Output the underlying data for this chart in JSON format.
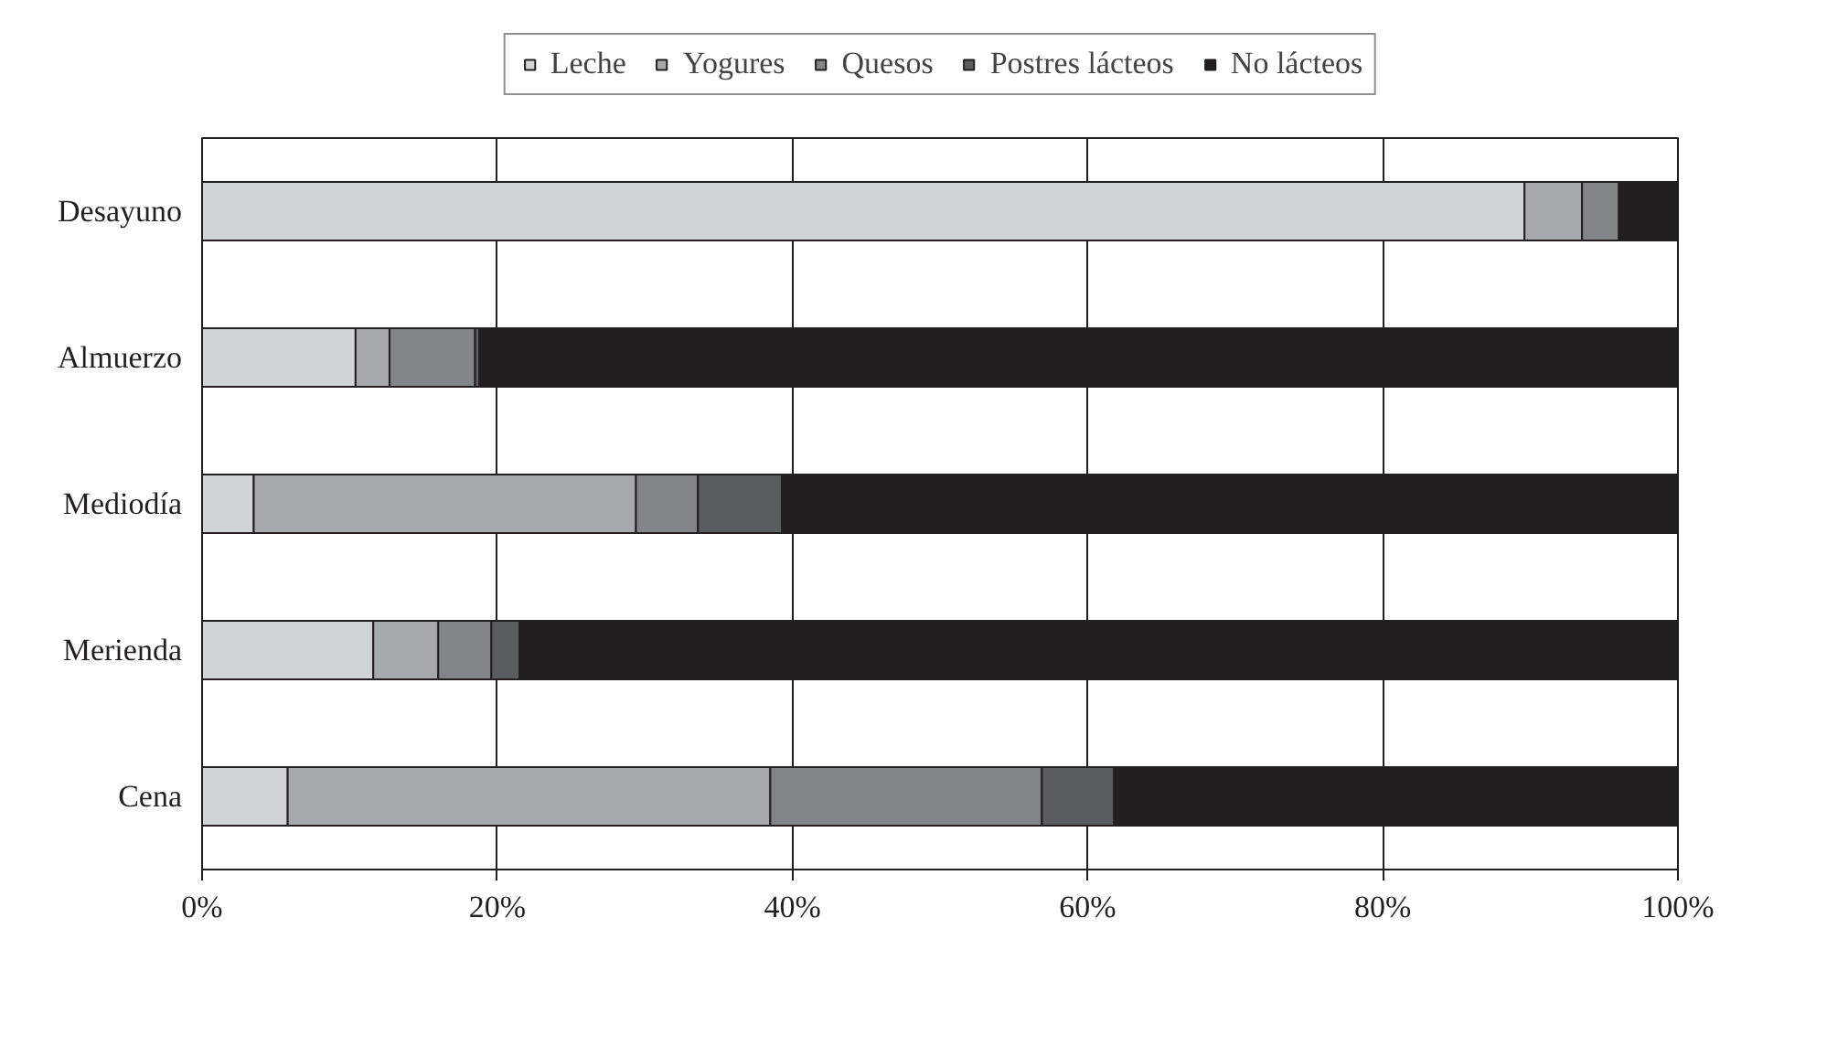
{
  "chart_data": {
    "type": "bar",
    "orientation": "horizontal",
    "stacked": true,
    "categories": [
      "Desayuno",
      "Almuerzo",
      "Mediodía",
      "Merienda",
      "Cena"
    ],
    "series": [
      {
        "name": "Leche",
        "color": "#d3d4d6",
        "values": [
          89.6,
          10.4,
          3.5,
          11.6,
          5.8
        ]
      },
      {
        "name": "Yogures",
        "color": "#a7a8ab",
        "values": [
          3.9,
          2.3,
          25.9,
          4.4,
          32.7
        ]
      },
      {
        "name": "Quesos",
        "color": "#838487",
        "values": [
          2.5,
          5.8,
          4.2,
          3.6,
          18.4
        ]
      },
      {
        "name": "Postres lácteos",
        "color": "#5b5c60",
        "values": [
          0.1,
          0.3,
          5.7,
          1.9,
          4.9
        ]
      },
      {
        "name": "No lácteos",
        "color": "#231f20",
        "values": [
          3.9,
          81.2,
          60.7,
          78.5,
          38.2
        ]
      }
    ],
    "xlim": [
      0,
      100
    ],
    "xticks": [
      {
        "value": 0,
        "label": "0%"
      },
      {
        "value": 20,
        "label": "20%"
      },
      {
        "value": 40,
        "label": "40%"
      },
      {
        "value": 60,
        "label": "60%"
      },
      {
        "value": 80,
        "label": "80%"
      },
      {
        "value": 100,
        "label": "100%"
      }
    ],
    "grid": "x",
    "legend": "top"
  }
}
